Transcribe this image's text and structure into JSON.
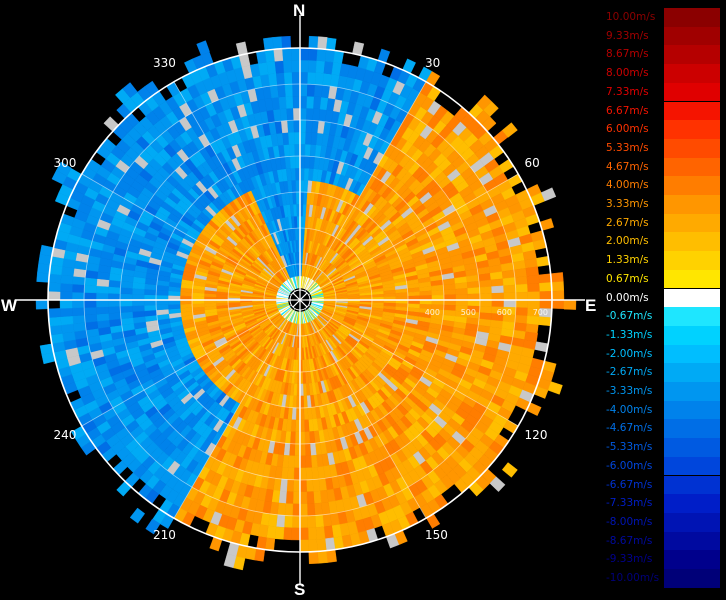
{
  "compass": {
    "north": "N",
    "south": "S",
    "east": "E",
    "west": "W"
  },
  "bearings": [
    {
      "deg": 30,
      "label": "30"
    },
    {
      "deg": 60,
      "label": "60"
    },
    {
      "deg": 120,
      "label": "120"
    },
    {
      "deg": 150,
      "label": "150"
    },
    {
      "deg": 210,
      "label": "210"
    },
    {
      "deg": 240,
      "label": "240"
    },
    {
      "deg": 300,
      "label": "300"
    },
    {
      "deg": 330,
      "label": "330"
    }
  ],
  "legend": [
    {
      "label": "10.00m/s",
      "color": "#8b0000"
    },
    {
      "label": "9.33m/s",
      "color": "#a00000"
    },
    {
      "label": "8.67m/s",
      "color": "#b50000"
    },
    {
      "label": "8.00m/s",
      "color": "#cc0000"
    },
    {
      "label": "7.33m/s",
      "color": "#e00000"
    },
    {
      "label": "6.67m/s",
      "color": "#f51400"
    },
    {
      "label": "6.00m/s",
      "color": "#ff3200"
    },
    {
      "label": "5.33m/s",
      "color": "#ff4b00"
    },
    {
      "label": "4.67m/s",
      "color": "#ff6400"
    },
    {
      "label": "4.00m/s",
      "color": "#ff7d00"
    },
    {
      "label": "3.33m/s",
      "color": "#ff9600"
    },
    {
      "label": "2.67m/s",
      "color": "#ffaa00"
    },
    {
      "label": "2.00m/s",
      "color": "#ffbe00"
    },
    {
      "label": "1.33m/s",
      "color": "#ffd200"
    },
    {
      "label": "0.67m/s",
      "color": "#ffe600"
    },
    {
      "label": "0.00m/s",
      "color": "#ffffff"
    },
    {
      "label": "-0.67m/s",
      "color": "#1ee6ff"
    },
    {
      "label": "-1.33m/s",
      "color": "#00d2ff"
    },
    {
      "label": "-2.00m/s",
      "color": "#00beff"
    },
    {
      "label": "-2.67m/s",
      "color": "#00aaf5"
    },
    {
      "label": "-3.33m/s",
      "color": "#0096f0"
    },
    {
      "label": "-4.00m/s",
      "color": "#0082eb"
    },
    {
      "label": "-4.67m/s",
      "color": "#006ee6"
    },
    {
      "label": "-5.33m/s",
      "color": "#005ae1"
    },
    {
      "label": "-6.00m/s",
      "color": "#0046dc"
    },
    {
      "label": "-6.67m/s",
      "color": "#0032d2"
    },
    {
      "label": "-7.33m/s",
      "color": "#001ec8"
    },
    {
      "label": "-8.00m/s",
      "color": "#0014b4"
    },
    {
      "label": "-8.67m/s",
      "color": "#000aa0"
    },
    {
      "label": "-9.33m/s",
      "color": "#00008c"
    },
    {
      "label": "-10.00m/s",
      "color": "#000078"
    }
  ],
  "chart_data": {
    "type": "heatmap",
    "projection": "polar",
    "range_rings": [
      100,
      200,
      300,
      400,
      500,
      600,
      700
    ],
    "range_labels": [
      "400",
      "500",
      "600",
      "700"
    ],
    "max_range": 700,
    "bearing_spokes_deg": [
      0,
      30,
      60,
      90,
      120,
      150,
      180,
      210,
      240,
      270,
      300,
      330
    ],
    "colorscale_min": -10.0,
    "colorscale_max": 10.0,
    "colorscale_step": 0.67,
    "velocity_field": {
      "approaching_sector_deg": [
        250,
        15
      ],
      "approaching_value": -3.5,
      "receding_sector_deg": [
        30,
        210
      ],
      "receding_value": 3.0,
      "near_range_receding_ring": [
        120,
        320
      ],
      "no_data_color": "#c8c8c8"
    },
    "grid": true
  }
}
